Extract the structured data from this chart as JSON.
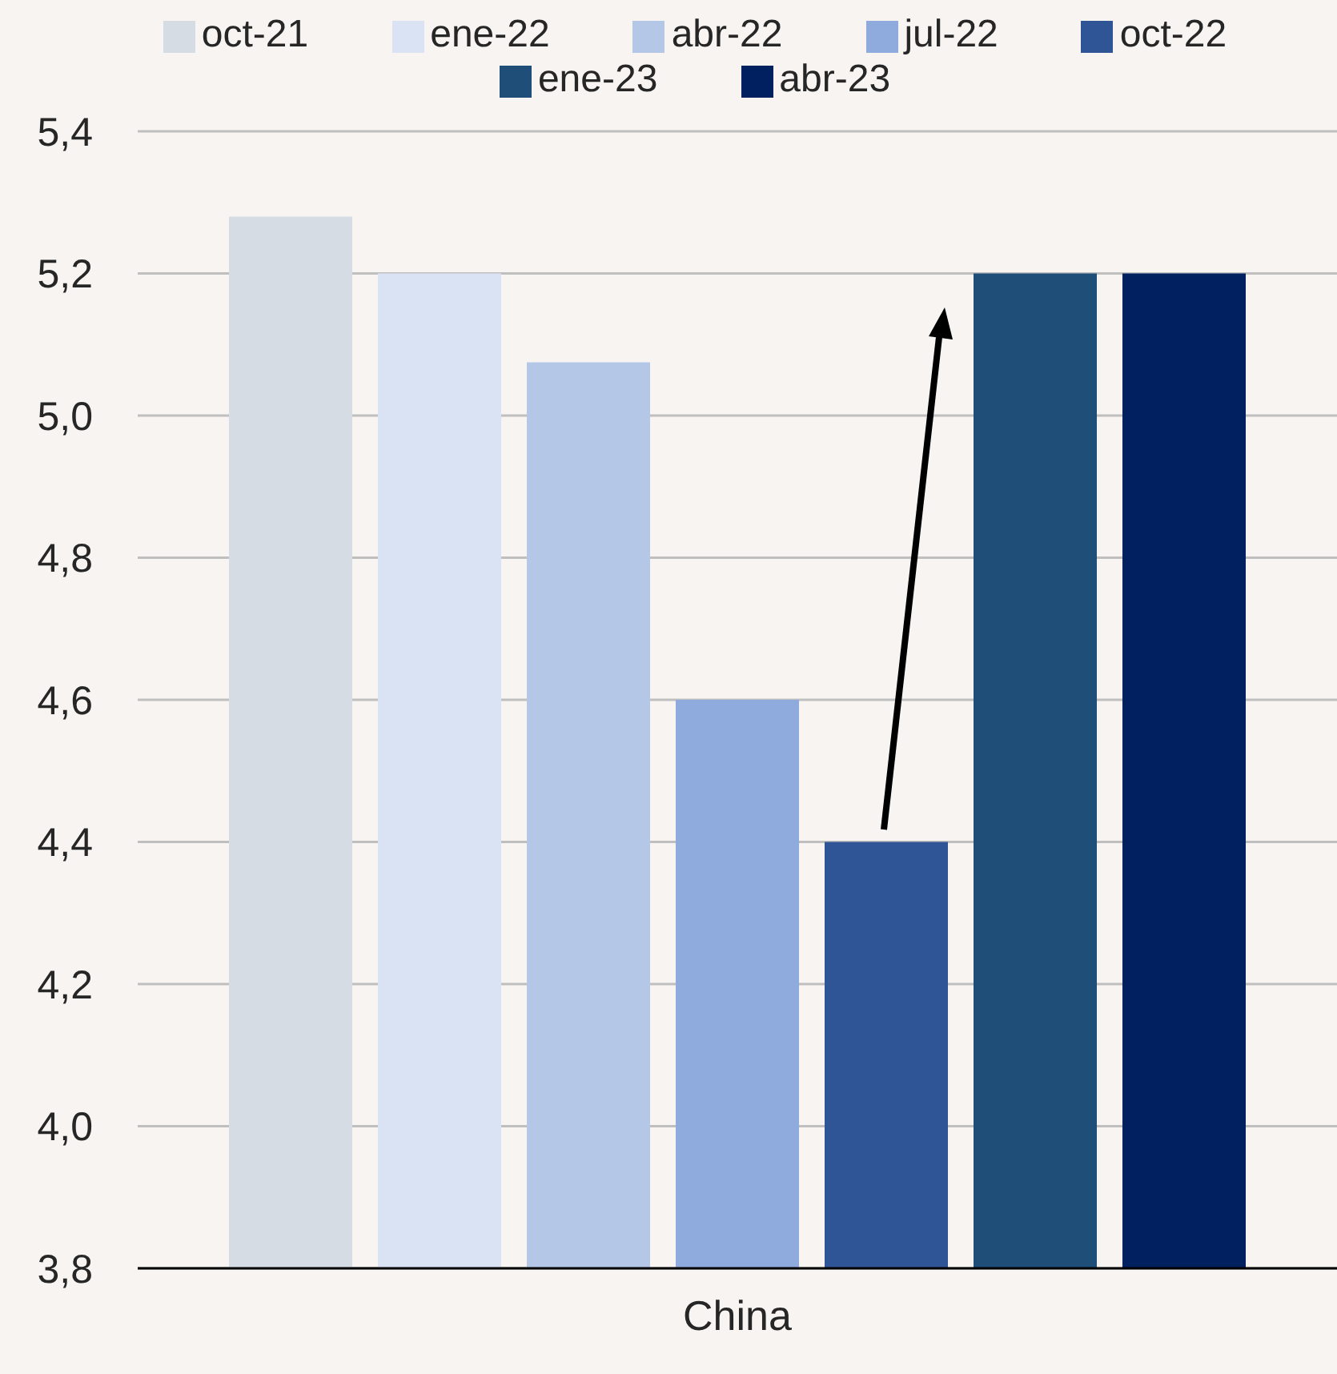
{
  "chart_data": {
    "type": "bar",
    "categories": [
      "China"
    ],
    "series": [
      {
        "name": "oct-21",
        "color": "#d6dce4",
        "values": [
          5.28
        ]
      },
      {
        "name": "ene-22",
        "color": "#dae3f3",
        "values": [
          5.2
        ]
      },
      {
        "name": "abr-22",
        "color": "#b4c7e7",
        "values": [
          5.075
        ]
      },
      {
        "name": "jul-22",
        "color": "#8faadc",
        "values": [
          4.6
        ]
      },
      {
        "name": "oct-22",
        "color": "#2f5597",
        "values": [
          4.4
        ]
      },
      {
        "name": "ene-23",
        "color": "#1f4e79",
        "values": [
          5.2
        ]
      },
      {
        "name": "abr-23",
        "color": "#002060",
        "values": [
          5.2
        ]
      }
    ],
    "ylim": [
      3.8,
      5.4
    ],
    "yticks": [
      {
        "value": 3.8,
        "label": "3,8"
      },
      {
        "value": 4.0,
        "label": "4,0"
      },
      {
        "value": 4.2,
        "label": "4,2"
      },
      {
        "value": 4.4,
        "label": "4,4"
      },
      {
        "value": 4.6,
        "label": "4,6"
      },
      {
        "value": 4.8,
        "label": "4,8"
      },
      {
        "value": 5.0,
        "label": "5,0"
      },
      {
        "value": 5.2,
        "label": "5,2"
      },
      {
        "value": 5.4,
        "label": "5,4"
      }
    ],
    "grid": "y",
    "legend": "top"
  }
}
